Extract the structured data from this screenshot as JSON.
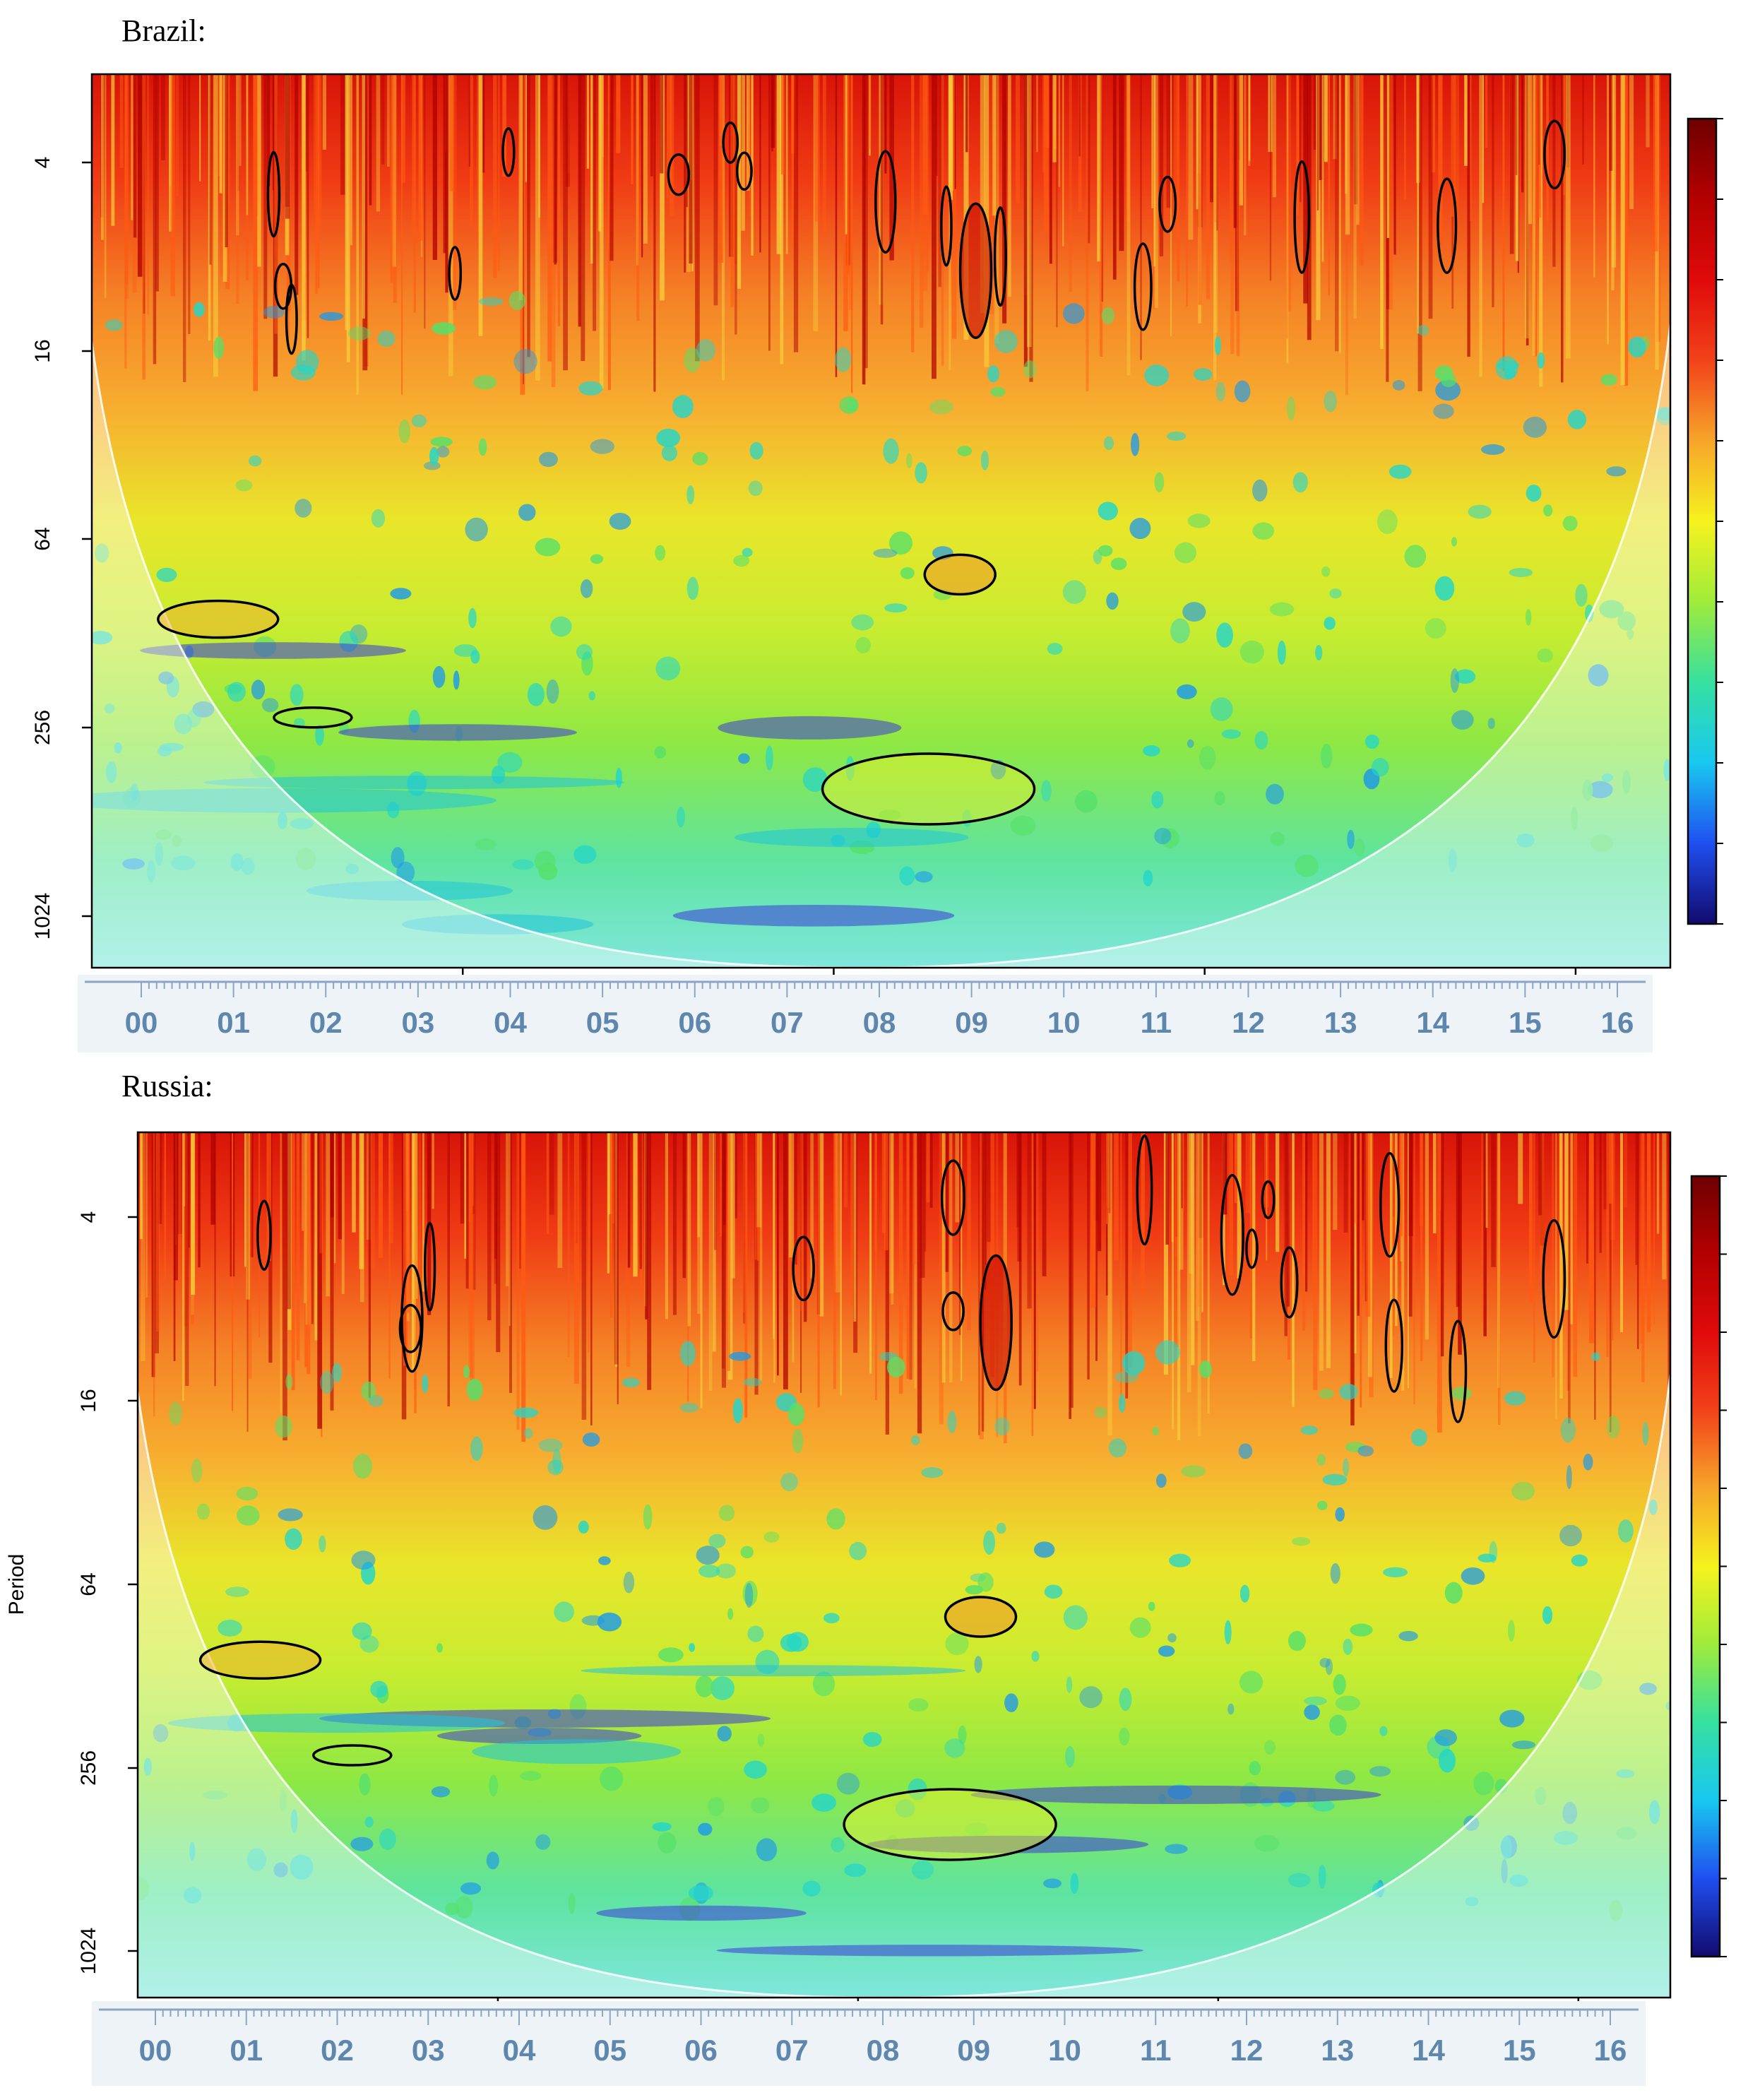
{
  "panels": [
    {
      "country": "Brazil:",
      "ylabel": "",
      "y_ticks": [
        "4",
        "16",
        "64",
        "256",
        "1024"
      ],
      "x_ticks": [
        "00",
        "01",
        "02",
        "03",
        "04",
        "05",
        "06",
        "07",
        "08",
        "09",
        "10",
        "11",
        "12",
        "13",
        "14",
        "15",
        "16"
      ]
    },
    {
      "country": "Russia:",
      "ylabel": "Period",
      "y_ticks": [
        "4",
        "16",
        "64",
        "256",
        "1024"
      ],
      "x_ticks": [
        "00",
        "01",
        "02",
        "03",
        "04",
        "05",
        "06",
        "07",
        "08",
        "09",
        "10",
        "11",
        "12",
        "13",
        "14",
        "15",
        "16"
      ]
    }
  ],
  "chart_data": [
    {
      "type": "heatmap",
      "title": "Brazil:",
      "xlabel": "",
      "ylabel": "",
      "y_scale": "log2",
      "y_ticks": [
        4,
        16,
        64,
        256,
        1024
      ],
      "y_range": [
        2,
        2048
      ],
      "x_ticks": [
        "00",
        "01",
        "02",
        "03",
        "04",
        "05",
        "06",
        "07",
        "08",
        "09",
        "10",
        "11",
        "12",
        "13",
        "14",
        "15",
        "16"
      ],
      "colorbar": [
        "#120a6e",
        "#1f4ff0",
        "#18c8f0",
        "#36e0a0",
        "#9fec3a",
        "#f6f21e",
        "#f7a52a",
        "#f2421a",
        "#e00a0a",
        "#6e0000"
      ],
      "colorbar_ticks": false,
      "cone_of_influence": true,
      "significance_contours": true
    },
    {
      "type": "heatmap",
      "title": "Russia:",
      "xlabel": "",
      "ylabel": "Period",
      "y_scale": "log2",
      "y_ticks": [
        4,
        16,
        64,
        256,
        1024
      ],
      "y_range": [
        2,
        2048
      ],
      "x_ticks": [
        "00",
        "01",
        "02",
        "03",
        "04",
        "05",
        "06",
        "07",
        "08",
        "09",
        "10",
        "11",
        "12",
        "13",
        "14",
        "15",
        "16"
      ],
      "colorbar": [
        "#120a6e",
        "#1f4ff0",
        "#18c8f0",
        "#36e0a0",
        "#9fec3a",
        "#f6f21e",
        "#f7a52a",
        "#f2421a",
        "#e00a0a",
        "#6e0000"
      ],
      "colorbar_ticks": false,
      "cone_of_influence": true,
      "significance_contours": true
    }
  ]
}
